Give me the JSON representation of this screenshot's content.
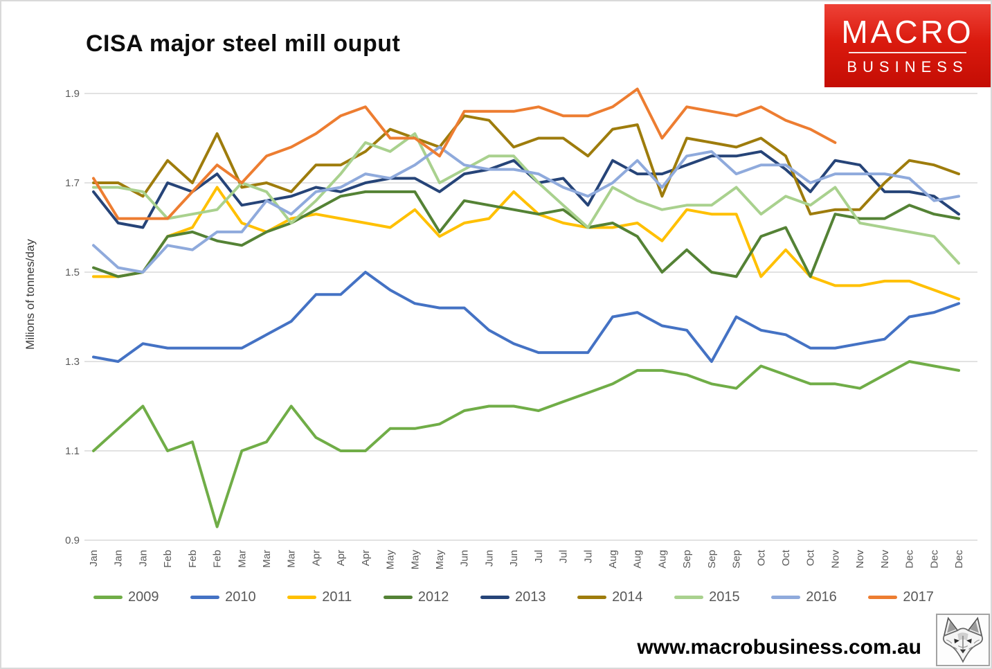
{
  "header": {
    "title": "CISA major steel mill ouput",
    "logo": {
      "line1": "MACRO",
      "line2": "BUSINESS",
      "bg_color": "#d6150b"
    }
  },
  "footer": {
    "url": "www.macrobusiness.com.au",
    "logo_icon": "fox-sketch-logo"
  },
  "chart_data": {
    "type": "line",
    "title": "CISA major steel mill ouput",
    "ylabel": "Milions of tonnes/day",
    "ylim": [
      0.9,
      1.9
    ],
    "yticks": [
      0.9,
      1.1,
      1.3,
      1.5,
      1.7,
      1.9
    ],
    "grid": true,
    "grid_color": "#d9d9d9",
    "tick_color": "#595959",
    "legend_position": "bottom",
    "x_labels": [
      "Jan",
      "Jan",
      "Jan",
      "Feb",
      "Feb",
      "Feb",
      "Mar",
      "Mar",
      "Mar",
      "Apr",
      "Apr",
      "Apr",
      "May",
      "May",
      "May",
      "Jun",
      "Jun",
      "Jun",
      "Jul",
      "Jul",
      "Jul",
      "Aug",
      "Aug",
      "Aug",
      "Sep",
      "Sep",
      "Sep",
      "Oct",
      "Oct",
      "Oct",
      "Nov",
      "Nov",
      "Nov",
      "Dec",
      "Dec",
      "Dec"
    ],
    "series": [
      {
        "name": "2009",
        "color": "#70AD47",
        "values": [
          1.1,
          1.15,
          1.2,
          1.1,
          1.12,
          0.93,
          1.1,
          1.12,
          1.2,
          1.13,
          1.1,
          1.1,
          1.15,
          1.15,
          1.16,
          1.19,
          1.2,
          1.2,
          1.19,
          1.21,
          1.23,
          1.25,
          1.28,
          1.28,
          1.27,
          1.25,
          1.24,
          1.29,
          1.27,
          1.25,
          1.25,
          1.24,
          1.27,
          1.3,
          1.29,
          1.28
        ]
      },
      {
        "name": "2010",
        "color": "#4472C4",
        "values": [
          1.31,
          1.3,
          1.34,
          1.33,
          1.33,
          1.33,
          1.33,
          1.36,
          1.39,
          1.45,
          1.45,
          1.5,
          1.46,
          1.43,
          1.42,
          1.42,
          1.37,
          1.34,
          1.32,
          1.32,
          1.32,
          1.4,
          1.41,
          1.38,
          1.37,
          1.3,
          1.4,
          1.37,
          1.36,
          1.33,
          1.33,
          1.34,
          1.35,
          1.4,
          1.41,
          1.43
        ]
      },
      {
        "name": "2011",
        "color": "#FFC000",
        "values": [
          1.49,
          1.49,
          1.5,
          1.58,
          1.6,
          1.69,
          1.61,
          1.59,
          1.62,
          1.63,
          1.62,
          1.61,
          1.6,
          1.64,
          1.58,
          1.61,
          1.62,
          1.68,
          1.63,
          1.61,
          1.6,
          1.6,
          1.61,
          1.57,
          1.64,
          1.63,
          1.63,
          1.49,
          1.55,
          1.49,
          1.47,
          1.47,
          1.48,
          1.48,
          1.46,
          1.44
        ]
      },
      {
        "name": "2012",
        "color": "#548235",
        "values": [
          1.51,
          1.49,
          1.5,
          1.58,
          1.59,
          1.57,
          1.56,
          1.59,
          1.61,
          1.64,
          1.67,
          1.68,
          1.68,
          1.68,
          1.59,
          1.66,
          1.65,
          1.64,
          1.63,
          1.64,
          1.6,
          1.61,
          1.58,
          1.5,
          1.55,
          1.5,
          1.49,
          1.58,
          1.6,
          1.49,
          1.63,
          1.62,
          1.62,
          1.65,
          1.63,
          1.62
        ]
      },
      {
        "name": "2013",
        "color": "#264478",
        "values": [
          1.68,
          1.61,
          1.6,
          1.7,
          1.68,
          1.72,
          1.65,
          1.66,
          1.67,
          1.69,
          1.68,
          1.7,
          1.71,
          1.71,
          1.68,
          1.72,
          1.73,
          1.75,
          1.7,
          1.71,
          1.65,
          1.75,
          1.72,
          1.72,
          1.74,
          1.76,
          1.76,
          1.77,
          1.73,
          1.68,
          1.75,
          1.74,
          1.68,
          1.68,
          1.67,
          1.63
        ]
      },
      {
        "name": "2014",
        "color": "#9E7C0C",
        "values": [
          1.7,
          1.7,
          1.67,
          1.75,
          1.7,
          1.81,
          1.69,
          1.7,
          1.68,
          1.74,
          1.74,
          1.77,
          1.82,
          1.8,
          1.78,
          1.85,
          1.84,
          1.78,
          1.8,
          1.8,
          1.76,
          1.82,
          1.83,
          1.67,
          1.8,
          1.79,
          1.78,
          1.8,
          1.76,
          1.63,
          1.64,
          1.64,
          1.7,
          1.75,
          1.74,
          1.72
        ]
      },
      {
        "name": "2015",
        "color": "#A9D18E",
        "values": [
          1.69,
          1.69,
          1.68,
          1.62,
          1.63,
          1.64,
          1.7,
          1.68,
          1.61,
          1.66,
          1.72,
          1.79,
          1.77,
          1.81,
          1.7,
          1.73,
          1.76,
          1.76,
          1.7,
          1.65,
          1.6,
          1.69,
          1.66,
          1.64,
          1.65,
          1.65,
          1.69,
          1.63,
          1.67,
          1.65,
          1.69,
          1.61,
          1.6,
          1.59,
          1.58,
          1.52
        ]
      },
      {
        "name": "2016",
        "color": "#8FAADC",
        "values": [
          1.56,
          1.51,
          1.5,
          1.56,
          1.55,
          1.59,
          1.59,
          1.66,
          1.63,
          1.68,
          1.69,
          1.72,
          1.71,
          1.74,
          1.78,
          1.74,
          1.73,
          1.73,
          1.72,
          1.69,
          1.67,
          1.7,
          1.75,
          1.69,
          1.76,
          1.77,
          1.72,
          1.74,
          1.74,
          1.7,
          1.72,
          1.72,
          1.72,
          1.71,
          1.66,
          1.67
        ]
      },
      {
        "name": "2017",
        "color": "#ED7D31",
        "values": [
          1.71,
          1.62,
          1.62,
          1.62,
          1.68,
          1.74,
          1.7,
          1.76,
          1.78,
          1.81,
          1.85,
          1.87,
          1.8,
          1.8,
          1.76,
          1.86,
          1.86,
          1.86,
          1.87,
          1.85,
          1.85,
          1.87,
          1.91,
          1.8,
          1.87,
          1.86,
          1.85,
          1.87,
          1.84,
          1.82,
          1.79
        ]
      }
    ]
  }
}
